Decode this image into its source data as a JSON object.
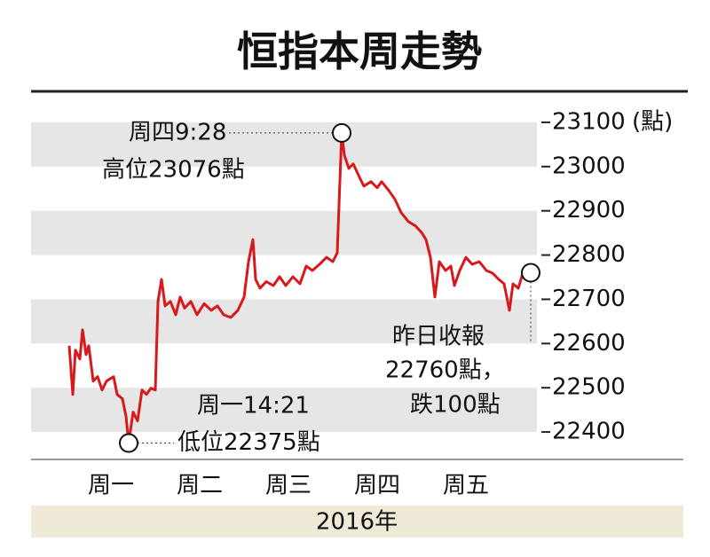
{
  "chart_data": {
    "type": "line",
    "title": "恒指本周走勢",
    "y_unit": "(點)",
    "xlabel": "2016年",
    "annotations": [
      "周四9:28",
      "高位23076點",
      "周一14:21",
      "低位22375點",
      "昨日收報",
      "22760點，",
      "跌100點"
    ],
    "bands": true,
    "color": "#d7191c",
    "xlim": [
      -0.4,
      5.3
    ],
    "xticks": [
      {
        "value": 0.5,
        "label": "周一"
      },
      {
        "value": 1.5,
        "label": "周二"
      },
      {
        "value": 2.5,
        "label": "周三"
      },
      {
        "value": 3.5,
        "label": "周四"
      },
      {
        "value": 4.5,
        "label": "周五"
      }
    ],
    "ylim": [
      22344,
      23156
    ],
    "yticks": [
      22400,
      22500,
      22600,
      22700,
      22800,
      22900,
      23000,
      23100
    ],
    "x": [
      0.03,
      0.07,
      0.1,
      0.15,
      0.18,
      0.22,
      0.25,
      0.3,
      0.35,
      0.4,
      0.45,
      0.53,
      0.57,
      0.63,
      0.67,
      0.7,
      0.75,
      0.8,
      0.85,
      0.9,
      0.95,
      1.0,
      1.03,
      1.07,
      1.11,
      1.17,
      1.23,
      1.28,
      1.33,
      1.4,
      1.47,
      1.55,
      1.63,
      1.7,
      1.77,
      1.85,
      1.93,
      2.0,
      2.05,
      2.1,
      2.13,
      2.18,
      2.25,
      2.33,
      2.4,
      2.47,
      2.55,
      2.63,
      2.7,
      2.77,
      2.85,
      2.93,
      3.0,
      3.05,
      3.1,
      3.13,
      3.18,
      3.23,
      3.3,
      3.35,
      3.43,
      3.5,
      3.55,
      3.63,
      3.7,
      3.77,
      3.85,
      3.93,
      4.0,
      4.05,
      4.1,
      4.15,
      4.2,
      4.27,
      4.33,
      4.37,
      4.43,
      4.5,
      4.57,
      4.65,
      4.73,
      4.8,
      4.87,
      4.93,
      4.99,
      5.03,
      5.09,
      5.15,
      5.23
    ],
    "values": [
      22595,
      22485,
      22585,
      22565,
      22631,
      22575,
      22595,
      22515,
      22525,
      22495,
      22515,
      22525,
      22485,
      22475,
      22435,
      22375,
      22445,
      22425,
      22495,
      22485,
      22499,
      22495,
      22695,
      22745,
      22685,
      22695,
      22665,
      22705,
      22680,
      22695,
      22665,
      22690,
      22675,
      22685,
      22665,
      22659,
      22675,
      22705,
      22785,
      22835,
      22745,
      22725,
      22740,
      22731,
      22751,
      22731,
      22751,
      22735,
      22775,
      22765,
      22779,
      22795,
      22785,
      22805,
      23076,
      23026,
      22996,
      23006,
      22976,
      22956,
      22966,
      22952,
      22966,
      22946,
      22926,
      22896,
      22876,
      22866,
      22851,
      22835,
      22795,
      22705,
      22785,
      22765,
      22775,
      22731,
      22765,
      22795,
      22779,
      22785,
      22765,
      22759,
      22745,
      22735,
      22675,
      22735,
      22725,
      22765,
      22760
    ]
  }
}
